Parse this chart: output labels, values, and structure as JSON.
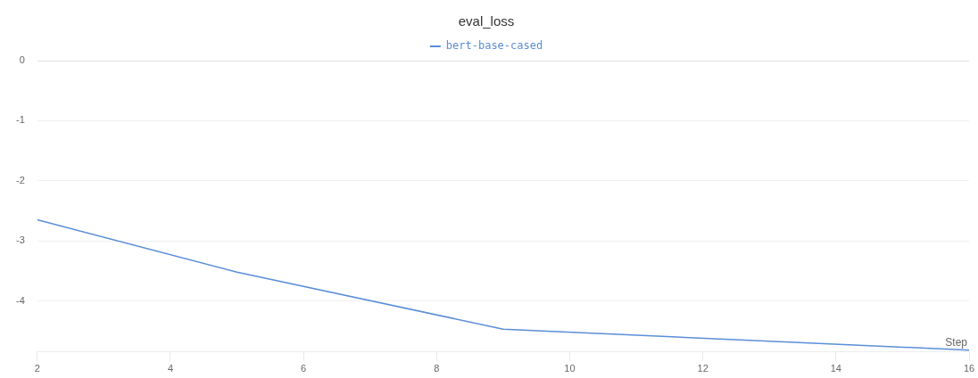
{
  "chart_data": {
    "type": "line",
    "title": "eval_loss",
    "xlabel": "Step",
    "x": [
      2,
      5,
      9,
      16
    ],
    "series": [
      {
        "name": "bert-base-cased",
        "color": "#5b8ed8",
        "values": [
          -2.65,
          -3.52,
          -4.47,
          -4.82
        ]
      }
    ],
    "xlim": [
      2,
      16
    ],
    "xticks": [
      2,
      4,
      6,
      8,
      10,
      12,
      14,
      16
    ],
    "ylim": [
      -4.85,
      0
    ],
    "yticks": [
      0,
      -1,
      -2,
      -3,
      -4
    ],
    "grid": "y",
    "legend": "top",
    "marker": "none",
    "line_style": "solid"
  }
}
